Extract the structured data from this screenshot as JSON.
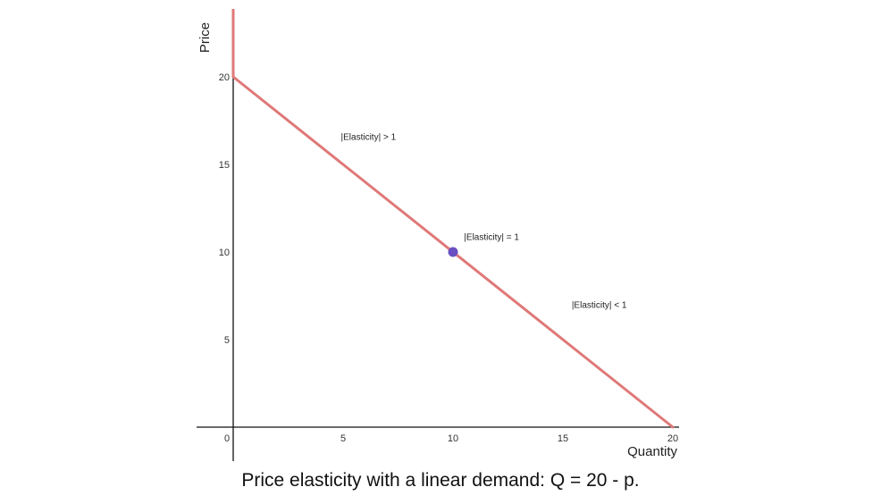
{
  "chart_data": {
    "type": "line",
    "title": "",
    "xlabel": "Quantity",
    "ylabel": "Price",
    "xlim": [
      0,
      20
    ],
    "ylim": [
      0,
      20
    ],
    "x_ticks": [
      0,
      5,
      10,
      15,
      20
    ],
    "y_ticks": [
      5,
      10,
      15,
      20
    ],
    "series": [
      {
        "color": "#e07878",
        "points": [
          [
            0,
            20
          ],
          [
            20,
            0
          ]
        ]
      }
    ],
    "vertical_segment": {
      "x": 0,
      "from_y": 20,
      "color": "#e07878"
    },
    "points": [
      {
        "x": 10,
        "y": 10,
        "color": "#6a4fc2"
      }
    ],
    "annotations": [
      {
        "text": "|Elasticity| > 1",
        "x": 4.9,
        "y": 16.4
      },
      {
        "text": "|Elasticity| = 1",
        "x": 10.5,
        "y": 10.7
      },
      {
        "text": "|Elasticity| < 1",
        "x": 15.4,
        "y": 6.8
      }
    ],
    "grid": false
  },
  "caption": "Price elasticity with a linear demand: Q = 20 - p."
}
